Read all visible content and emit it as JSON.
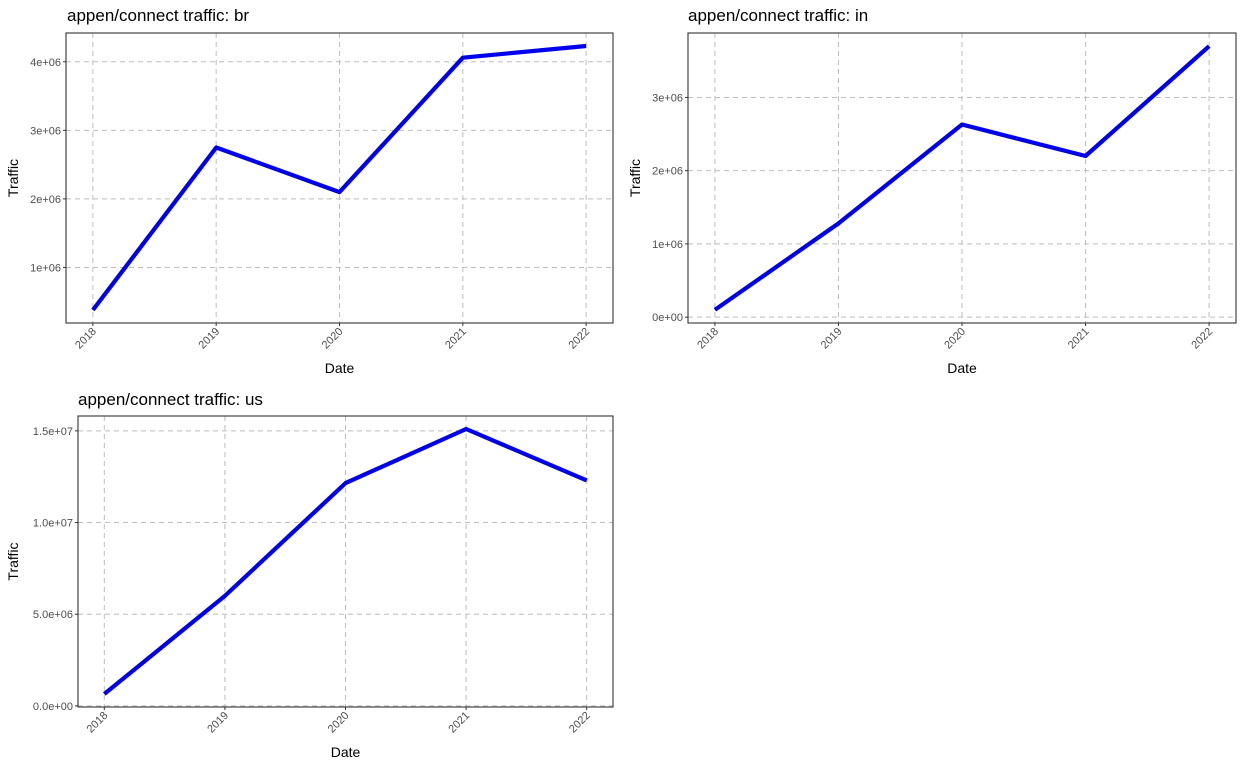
{
  "chart_data": [
    {
      "type": "line",
      "title": "appen/connect traffic: br",
      "xlabel": "Date",
      "ylabel": "Traffic",
      "x": [
        "2018",
        "2019",
        "2020",
        "2021",
        "2022"
      ],
      "y": [
        380000,
        2750000,
        2100000,
        4060000,
        4230000
      ],
      "ylim": [
        190000,
        4420000
      ],
      "yticks": [
        1000000,
        2000000,
        3000000,
        4000000
      ],
      "ytick_labels": [
        "1e+06",
        "2e+06",
        "3e+06",
        "4e+06"
      ],
      "grid": true,
      "line_color": "#0000EE"
    },
    {
      "type": "line",
      "title": "appen/connect traffic: in",
      "xlabel": "Date",
      "ylabel": "Traffic",
      "x": [
        "2018",
        "2019",
        "2020",
        "2021",
        "2022"
      ],
      "y": [
        100000,
        1280000,
        2630000,
        2200000,
        3700000
      ],
      "ylim": [
        -80000,
        3880000
      ],
      "yticks": [
        0,
        1000000,
        2000000,
        3000000
      ],
      "ytick_labels": [
        "0e+00",
        "1e+06",
        "2e+06",
        "3e+06"
      ],
      "grid": true,
      "line_color": "#0000EE"
    },
    {
      "type": "line",
      "title": "appen/connect traffic: us",
      "xlabel": "Date",
      "ylabel": "Traffic",
      "x": [
        "2018",
        "2019",
        "2020",
        "2021",
        "2022"
      ],
      "y": [
        650000,
        6000000,
        12150000,
        15100000,
        12300000
      ],
      "ylim": [
        -60000,
        15810000
      ],
      "yticks": [
        0,
        5000000,
        10000000,
        15000000
      ],
      "ytick_labels": [
        "0.0e+00",
        "5.0e+06",
        "1.0e+07",
        "1.5e+07"
      ],
      "grid": true,
      "line_color": "#0000EE"
    }
  ]
}
